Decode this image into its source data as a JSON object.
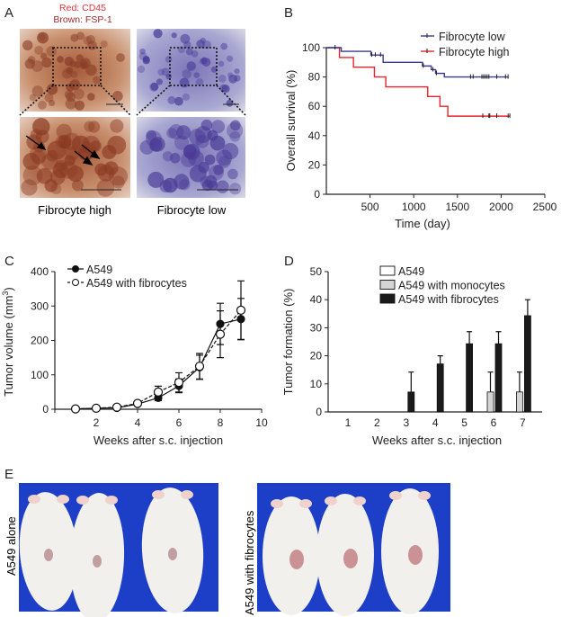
{
  "panels": {
    "a": "A",
    "b": "B",
    "c": "C",
    "d": "D",
    "e": "E"
  },
  "panel_a": {
    "stain_red": "Red: CD45",
    "stain_brown": "Brown: FSP-1",
    "caption_high": "Fibrocyte high",
    "caption_low": "Fibrocyte low",
    "colors": {
      "red": "#e8333a",
      "brown": "#a0282c"
    }
  },
  "panel_e": {
    "label_left": "A549 alone",
    "label_right": "A549 with fibrocytes",
    "background": "#1d3fc8"
  },
  "chart_data": [
    {
      "id": "B",
      "type": "line",
      "title": "",
      "xlabel": "Time (day)",
      "ylabel": "Overall survival (%)",
      "xlim": [
        0,
        2500
      ],
      "ylim": [
        0,
        100
      ],
      "xticks": [
        500,
        1000,
        1500,
        2000,
        2500
      ],
      "yticks": [
        0,
        20,
        40,
        60,
        80,
        100
      ],
      "legend_position": "top-right",
      "series": [
        {
          "name": "Fibrocyte low",
          "color": "#3a3a8c",
          "steps": [
            [
              0,
              100
            ],
            [
              170,
              97.5
            ],
            [
              510,
              95
            ],
            [
              650,
              90
            ],
            [
              1100,
              87.5
            ],
            [
              1200,
              85
            ],
            [
              1250,
              82.5
            ],
            [
              1350,
              80
            ],
            [
              2080,
              80
            ]
          ],
          "censored": [
            100,
            520,
            560,
            620,
            1110,
            1220,
            1260,
            1650,
            1680,
            1780,
            1800,
            1820,
            1840,
            1860,
            1950,
            2050,
            2080
          ]
        },
        {
          "name": "Fibrocyte high",
          "color": "#e8242a",
          "steps": [
            [
              0,
              100
            ],
            [
              150,
              93.3
            ],
            [
              310,
              86.7
            ],
            [
              550,
              80
            ],
            [
              680,
              73.3
            ],
            [
              1160,
              66.7
            ],
            [
              1300,
              60
            ],
            [
              1390,
              53.3
            ],
            [
              2100,
              53.3
            ]
          ],
          "censored": [
            1790,
            1860,
            1870,
            1950,
            2080,
            2100
          ]
        }
      ]
    },
    {
      "id": "C",
      "type": "line",
      "xlabel": "Weeks after s.c. injection",
      "ylabel": "Tumor volume (mm3)",
      "ylabel_main": "Tumor volume (mm",
      "ylabel_sup": "3",
      "ylabel_end": ")",
      "xlim": [
        0,
        10
      ],
      "ylim": [
        0,
        400
      ],
      "xticks": [
        2,
        4,
        6,
        8,
        10
      ],
      "yticks": [
        0,
        100,
        200,
        300,
        400
      ],
      "legend_position": "top-left",
      "x": [
        1,
        2,
        3,
        4,
        5,
        6,
        7,
        8,
        9
      ],
      "series": [
        {
          "name": "A549",
          "marker": "filled-circle",
          "line": "solid",
          "values": [
            1,
            3,
            4,
            15,
            33,
            68,
            122,
            248,
            262
          ],
          "errors": [
            0,
            0,
            0,
            0,
            8,
            20,
            35,
            60,
            60
          ]
        },
        {
          "name": "A549 with fibrocytes",
          "marker": "open-circle",
          "line": "dashed",
          "values": [
            1,
            3,
            6,
            17,
            50,
            78,
            125,
            218,
            288
          ],
          "errors": [
            0,
            0,
            0,
            0,
            17,
            28,
            37,
            68,
            85
          ]
        }
      ]
    },
    {
      "id": "D",
      "type": "bar",
      "xlabel": "Weeks after s.c. injection",
      "ylabel": "Tumor formation (%)",
      "categories": [
        "1",
        "2",
        "3",
        "4",
        "5",
        "6",
        "7"
      ],
      "ylim": [
        0,
        50
      ],
      "yticks": [
        0,
        10,
        20,
        30,
        40,
        50
      ],
      "legend_position": "top-center",
      "series": [
        {
          "name": "A549",
          "color": "#ffffff",
          "values": [
            0,
            0,
            0,
            0,
            0,
            0,
            0
          ],
          "errors": [
            0,
            0,
            0,
            0,
            0,
            0,
            0
          ]
        },
        {
          "name": "A549 with monocytes",
          "color": "#d4d4d4",
          "values": [
            0,
            0,
            0,
            0,
            0,
            7.1,
            7.1
          ],
          "errors": [
            0,
            0,
            0,
            0,
            0,
            7.1,
            7.1
          ]
        },
        {
          "name": "A549 with fibrocytes",
          "color": "#1a1a1a",
          "values": [
            0,
            0,
            7.1,
            17.1,
            24.3,
            24.3,
            34.3
          ],
          "errors": [
            0,
            0,
            7.1,
            2.9,
            4.3,
            4.3,
            5.7
          ]
        }
      ]
    }
  ]
}
